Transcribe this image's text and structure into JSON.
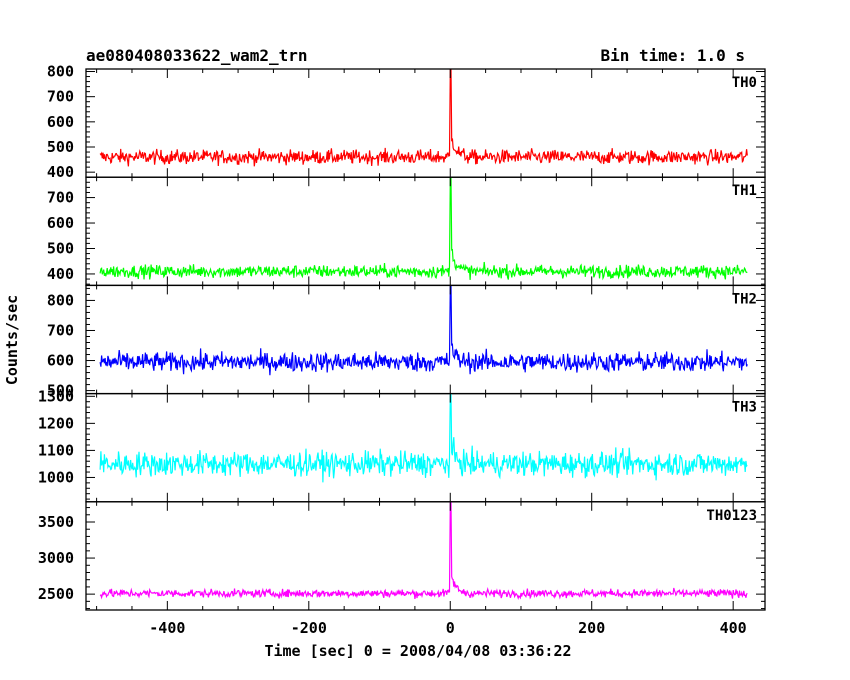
{
  "chart_data": {
    "type": "line",
    "title": "ae080408033622_wam2_trn",
    "subtitle": "Bin time: 1.0 s",
    "xlabel": "Time [sec] 0 = 2008/04/08 03:36:22",
    "ylabel": "Counts/sec",
    "xlim": [
      -515,
      445
    ],
    "x_ticks": [
      -400,
      -200,
      0,
      200,
      400
    ],
    "x_range": [
      -495,
      420
    ],
    "grid": false,
    "panels": [
      {
        "name": "TH0",
        "color": "#ff0000",
        "ylim": [
          380,
          810
        ],
        "y_ticks": [
          400,
          500,
          600,
          700,
          800
        ],
        "baseline": 460,
        "noise": 28,
        "peak": 810,
        "tail": 90
      },
      {
        "name": "TH1",
        "color": "#00ff00",
        "ylim": [
          355,
          780
        ],
        "y_ticks": [
          400,
          500,
          600,
          700
        ],
        "baseline": 410,
        "noise": 25,
        "peak": 780,
        "tail": 90
      },
      {
        "name": "TH2",
        "color": "#0000ff",
        "ylim": [
          490,
          850
        ],
        "y_ticks": [
          500,
          600,
          700,
          800
        ],
        "baseline": 595,
        "noise": 32,
        "peak": 850,
        "tail": 50
      },
      {
        "name": "TH3",
        "color": "#00ffff",
        "ylim": [
          910,
          1310
        ],
        "y_ticks": [
          1000,
          1100,
          1200,
          1300
        ],
        "baseline": 1050,
        "noise": 45,
        "peak": 1310,
        "tail": 60
      },
      {
        "name": "TH0123",
        "color": "#ff00ff",
        "ylim": [
          2280,
          3780
        ],
        "y_ticks": [
          2500,
          3000,
          3500
        ],
        "baseline": 2510,
        "noise": 55,
        "peak": 3780,
        "tail": 260
      }
    ]
  }
}
